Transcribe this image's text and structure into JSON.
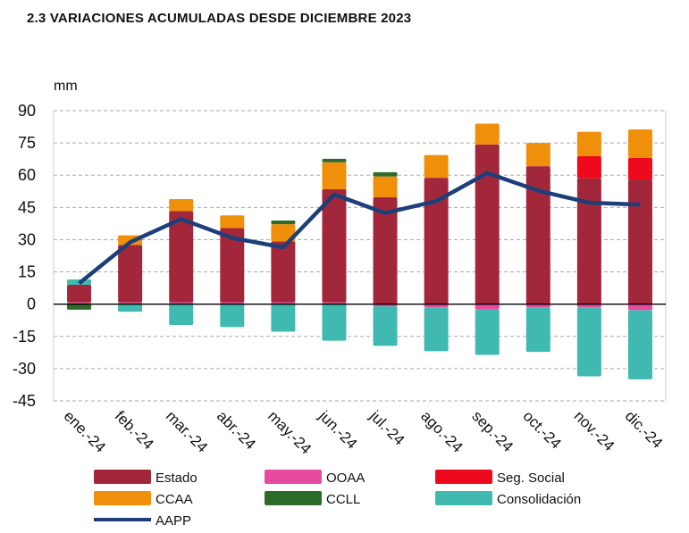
{
  "title": "2.3 VARIACIONES ACUMULADAS DESDE DICIEMBRE 2023",
  "chart_data": {
    "type": "bar",
    "stacked": true,
    "unit_label": "mm",
    "ylim": [
      -45,
      90
    ],
    "yticks": [
      90,
      75,
      60,
      45,
      30,
      15,
      0,
      -15,
      -30,
      -45
    ],
    "grid": true,
    "legend_position": "bottom",
    "categories": [
      "ene.-24",
      "feb.-24",
      "mar.-24",
      "abr.-24",
      "may.-24",
      "jun.-24",
      "jul.-24",
      "ago.-24",
      "sep.-24",
      "oct.-24",
      "nov.-24",
      "dic.-24"
    ],
    "series": [
      {
        "name": "Estado",
        "color": "#A3273A",
        "values": [
          8.2,
          26.7,
          42.5,
          34.6,
          28.4,
          52.7,
          49.7,
          58.8,
          74.3,
          64.2,
          58.6,
          58.0
        ]
      },
      {
        "name": "OOAA",
        "color": "#E84A9E",
        "values": [
          0.8,
          0.8,
          0.8,
          0.8,
          0.8,
          0.8,
          -1.0,
          -1.5,
          -2.5,
          -1.5,
          -1.5,
          -2.8
        ]
      },
      {
        "name": "Seg. Social",
        "color": "#EE0A1C",
        "values": [
          0,
          0,
          0,
          0,
          0,
          0,
          0,
          0,
          0,
          0,
          10.2,
          10.0
        ]
      },
      {
        "name": "CCAA",
        "color": "#F0900A",
        "values": [
          0,
          4.5,
          5.6,
          5.9,
          8.0,
          12.5,
          9.7,
          10.6,
          9.7,
          10.8,
          11.4,
          13.3
        ]
      },
      {
        "name": "CCLL",
        "color": "#2C6B2C",
        "values": [
          -2.6,
          0,
          0,
          0,
          1.7,
          1.6,
          2.0,
          0,
          0,
          0,
          0,
          0
        ]
      },
      {
        "name": "Consolidación",
        "color": "#40B9B0",
        "values": [
          2.5,
          -3.5,
          -9.7,
          -10.7,
          -12.8,
          -17.0,
          -18.4,
          -20.4,
          -21.1,
          -20.7,
          -32.1,
          -32.2
        ]
      }
    ],
    "line": {
      "name": "AAPP",
      "color": "#1C3F7A",
      "values": [
        9.7,
        28.8,
        39.6,
        30.8,
        26.4,
        51.0,
        42.4,
        47.9,
        61.0,
        52.8,
        47.2,
        46.3
      ]
    }
  }
}
